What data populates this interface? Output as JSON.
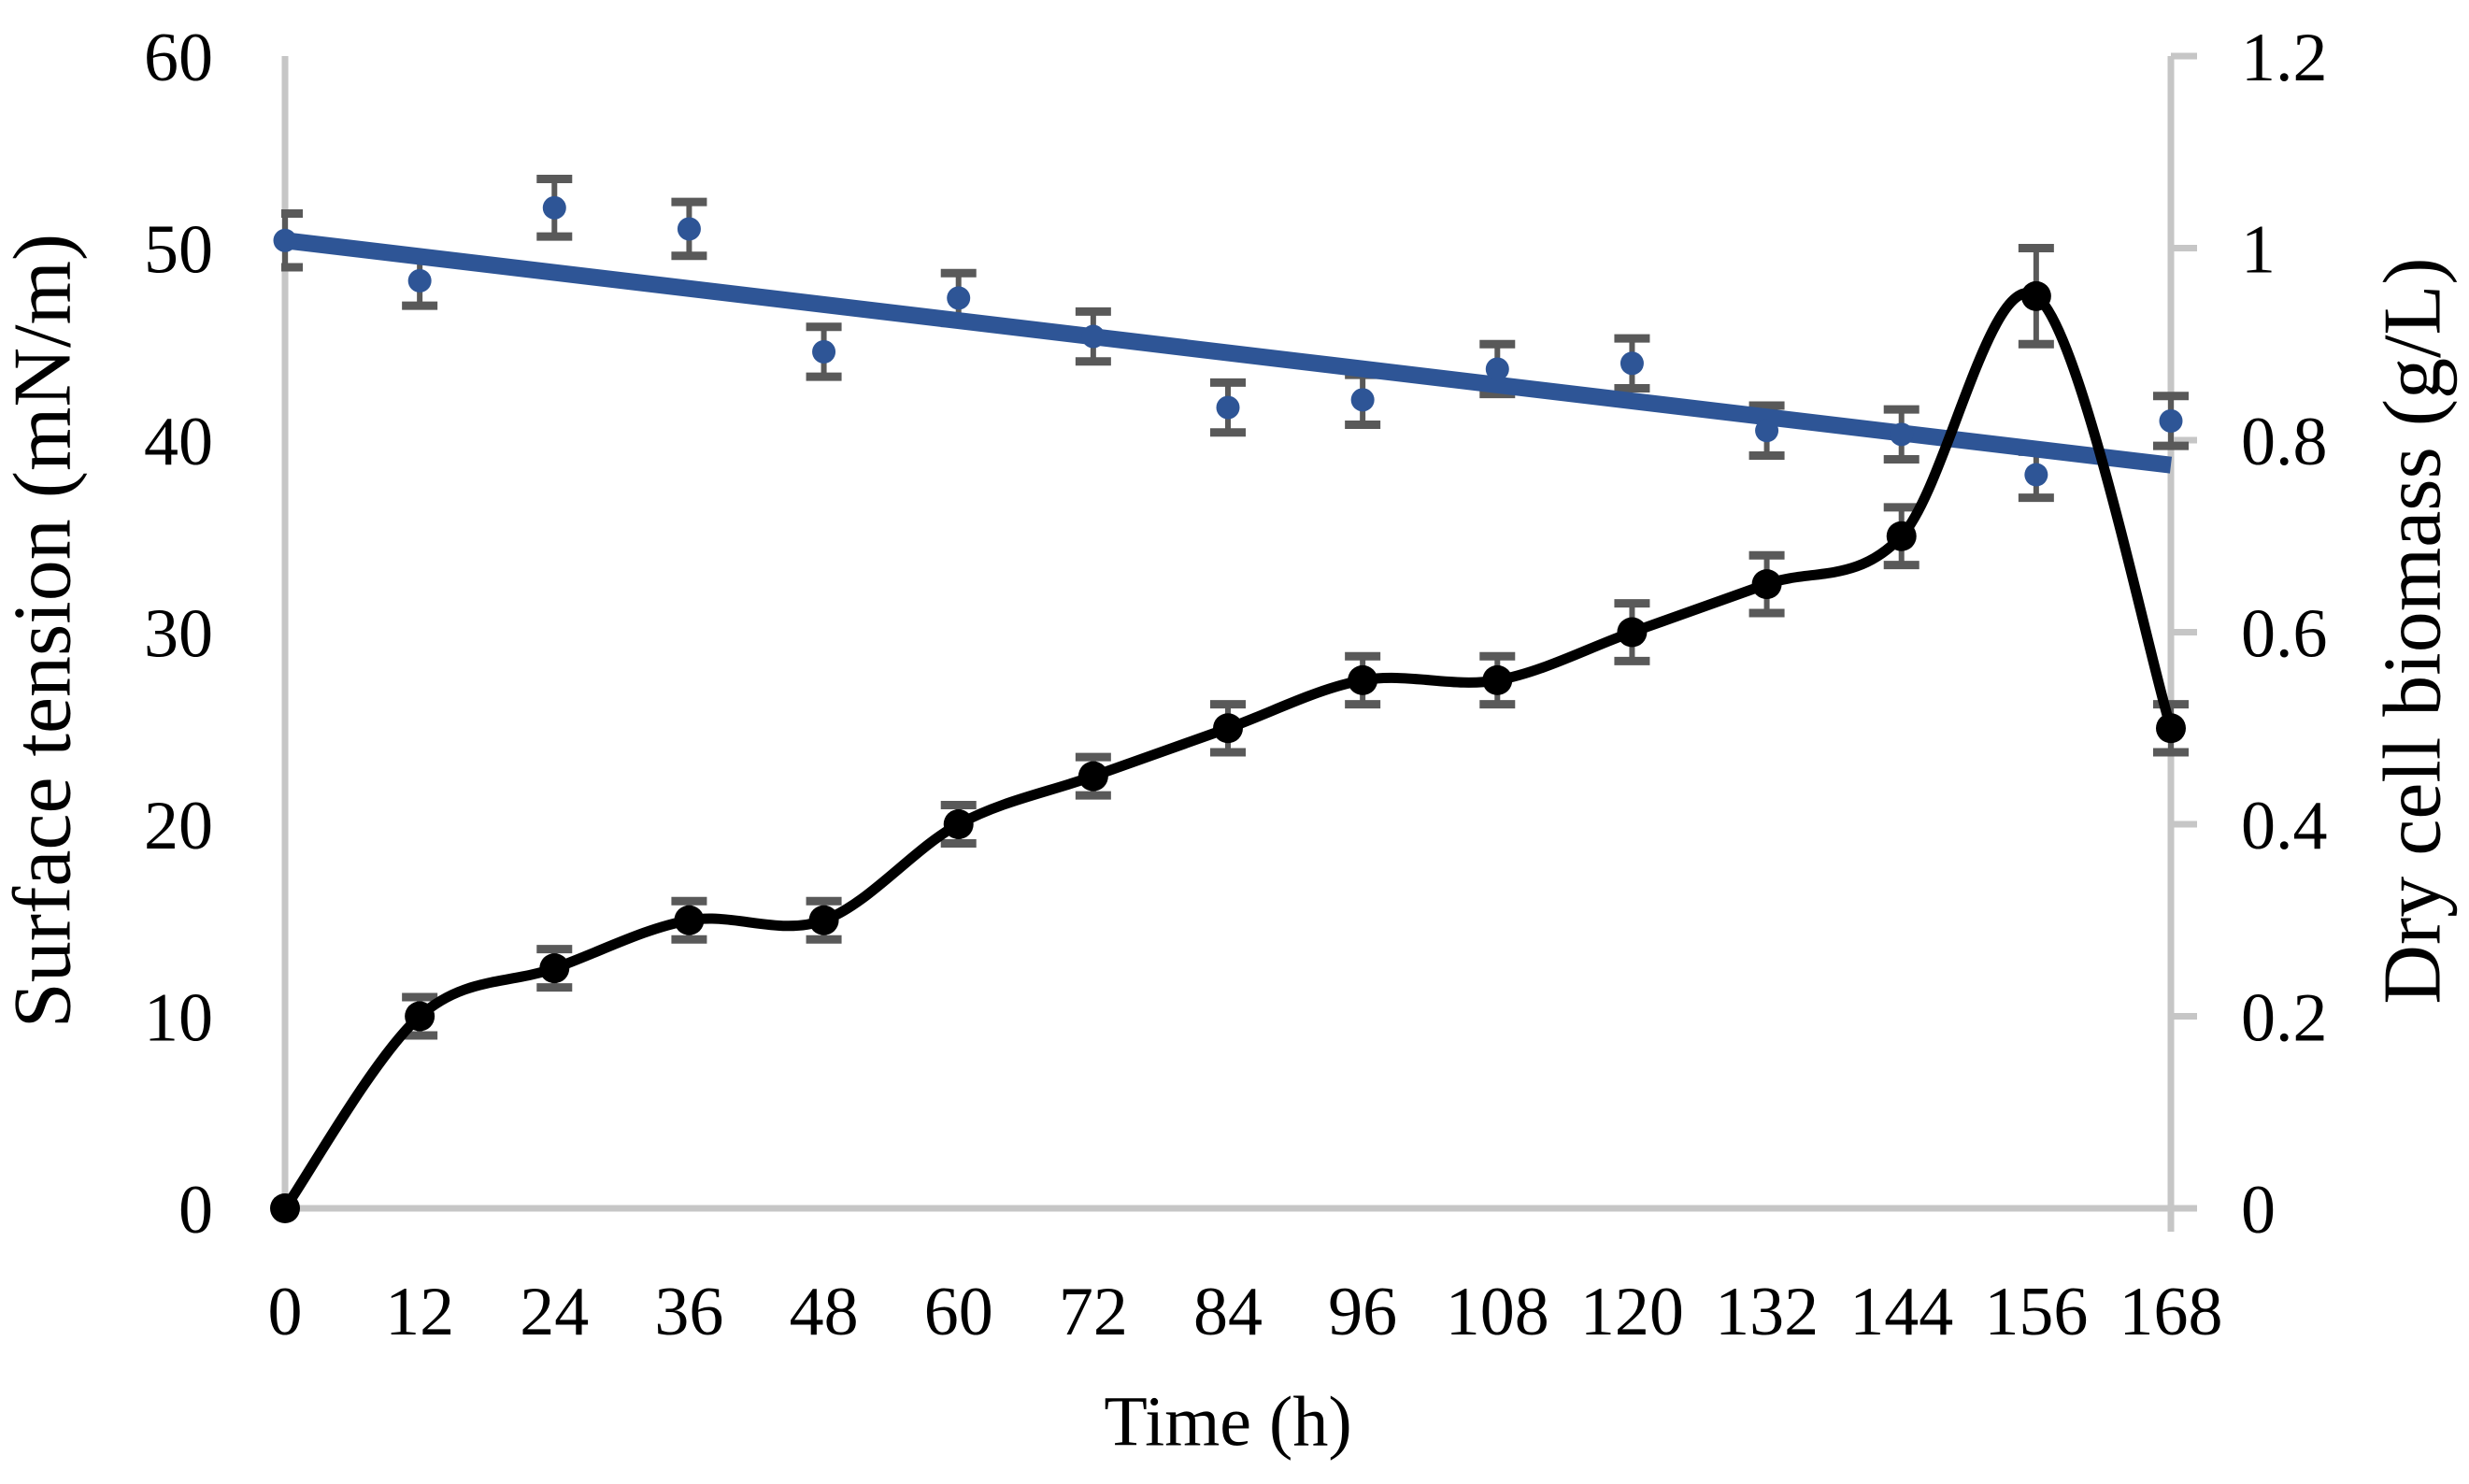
{
  "chart_data": {
    "type": "line",
    "title": "",
    "xlabel": "Time (h)",
    "x": [
      0,
      12,
      24,
      36,
      48,
      60,
      72,
      84,
      96,
      108,
      120,
      132,
      144,
      156,
      168
    ],
    "x_tick_labels": [
      "0",
      "12",
      "24",
      "36",
      "48",
      "60",
      "72",
      "84",
      "96",
      "108",
      "120",
      "132",
      "144",
      "156",
      "168"
    ],
    "left_axis": {
      "label": "Surface tension (mN/m)",
      "min": 0,
      "max": 60,
      "ticks": [
        0,
        10,
        20,
        30,
        40,
        50,
        60
      ],
      "tick_labels": [
        "0",
        "10",
        "20",
        "30",
        "40",
        "50",
        "60"
      ]
    },
    "right_axis": {
      "label": "Dry cell biomass (g/L)",
      "min": 0,
      "max": 1.2,
      "ticks": [
        0,
        0.2,
        0.4,
        0.6,
        0.8,
        1,
        1.2
      ],
      "tick_labels": [
        "0",
        "0.2",
        "0.4",
        "0.6",
        "0.8",
        "1",
        "1.2"
      ]
    },
    "series": [
      {
        "name": "surface-tension",
        "axis": "left",
        "render": "scatter",
        "marker": "circle",
        "values": [
          50.4,
          48.3,
          52.1,
          51.0,
          44.6,
          47.4,
          45.4,
          41.7,
          42.1,
          43.7,
          44.0,
          40.5,
          40.3,
          38.2,
          41.0
        ],
        "errors": [
          1.4,
          1.3,
          1.5,
          1.4,
          1.3,
          1.3,
          1.3,
          1.3,
          1.3,
          1.3,
          1.3,
          1.3,
          1.3,
          1.2,
          1.3
        ]
      },
      {
        "name": "dry-cell-biomass",
        "axis": "right",
        "render": "smooth-line",
        "marker": "circle",
        "values": [
          0,
          0.2,
          0.25,
          0.3,
          0.3,
          0.4,
          0.45,
          0.5,
          0.55,
          0.55,
          0.6,
          0.65,
          0.7,
          0.95,
          0.5
        ],
        "errors": [
          0,
          0.02,
          0.02,
          0.02,
          0.02,
          0.02,
          0.02,
          0.025,
          0.025,
          0.025,
          0.03,
          0.03,
          0.03,
          0.05,
          0.025
        ]
      }
    ],
    "trendline": {
      "series": "surface-tension",
      "axis": "left",
      "start_value": 50.4,
      "end_value": 38.7
    },
    "legend": "none",
    "grid": "off",
    "colors": {
      "blue_series": "#2E5596",
      "black_series": "#000000",
      "error_bar_gray": "#595959",
      "axis_line_gray": "#C6C6C6",
      "text_black": "#000000",
      "background": "#FFFFFF"
    }
  }
}
